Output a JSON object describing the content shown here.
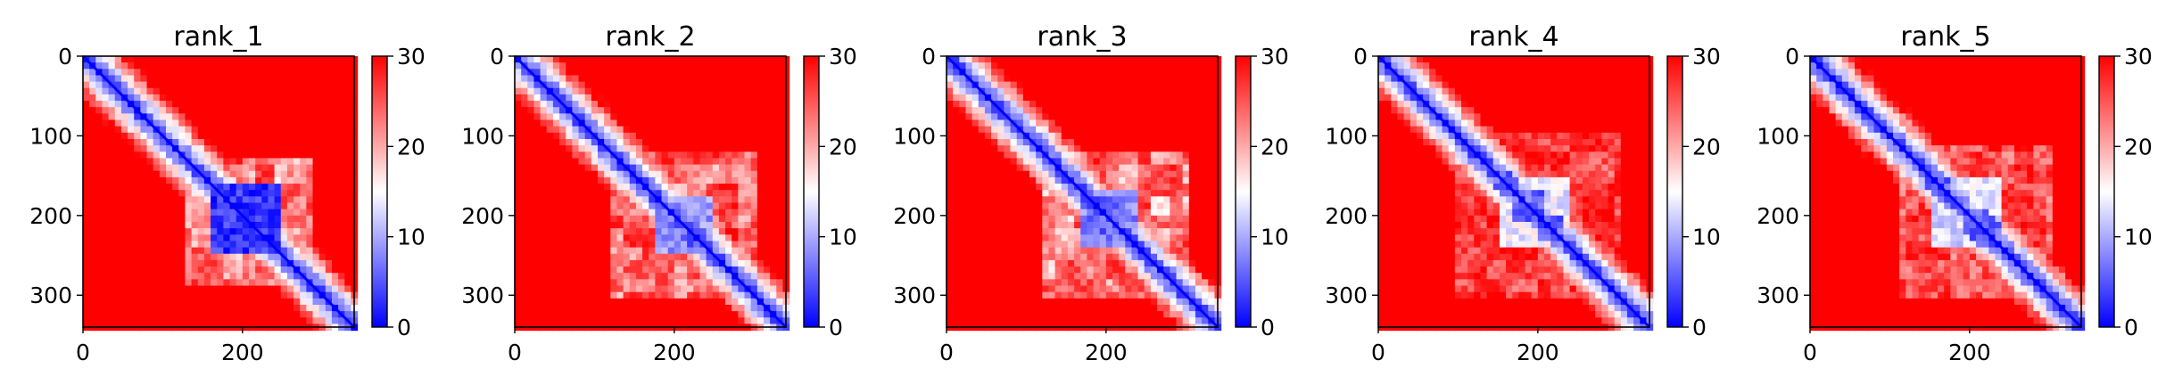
{
  "chart_data": [
    {
      "type": "heatmap",
      "title": "rank_1",
      "xlim": [
        0,
        340
      ],
      "ylim": [
        340,
        0
      ],
      "x_ticks": [
        0,
        200
      ],
      "y_ticks": [
        0,
        100,
        200,
        300
      ],
      "colorbar": {
        "min": 0,
        "max": 30,
        "ticks": [
          0,
          10,
          20,
          30
        ],
        "cmap": [
          "#0000ff",
          "#ffffff",
          "#ff0000"
        ]
      },
      "features": {
        "block": [
          130,
          290
        ],
        "core": [
          160,
          250
        ],
        "fringe": 0.55,
        "core_strength": 0.85,
        "blobs": []
      }
    },
    {
      "type": "heatmap",
      "title": "rank_2",
      "xlim": [
        0,
        340
      ],
      "ylim": [
        340,
        0
      ],
      "x_ticks": [
        0,
        200
      ],
      "y_ticks": [
        0,
        100,
        200,
        300
      ],
      "colorbar": {
        "min": 0,
        "max": 30,
        "ticks": [
          0,
          10,
          20,
          30
        ],
        "cmap": [
          "#0000ff",
          "#ffffff",
          "#ff0000"
        ]
      },
      "features": {
        "block": [
          120,
          300
        ],
        "core": [
          180,
          250
        ],
        "fringe": 0.5,
        "core_strength": 0.55,
        "blobs": [
          [
            205,
            205
          ],
          [
            230,
            225
          ]
        ]
      }
    },
    {
      "type": "heatmap",
      "title": "rank_3",
      "xlim": [
        0,
        340
      ],
      "ylim": [
        340,
        0
      ],
      "x_ticks": [
        0,
        200
      ],
      "y_ticks": [
        0,
        100,
        200,
        300
      ],
      "colorbar": {
        "min": 0,
        "max": 30,
        "ticks": [
          0,
          10,
          20,
          30
        ],
        "cmap": [
          "#0000ff",
          "#ffffff",
          "#ff0000"
        ]
      },
      "features": {
        "block": [
          120,
          300
        ],
        "core": [
          170,
          240
        ],
        "fringe": 0.55,
        "core_strength": 0.6,
        "blobs": [
          [
            210,
            205
          ],
          [
            190,
            200
          ]
        ]
      }
    },
    {
      "type": "heatmap",
      "title": "rank_4",
      "xlim": [
        0,
        340
      ],
      "ylim": [
        340,
        0
      ],
      "x_ticks": [
        0,
        200
      ],
      "y_ticks": [
        0,
        100,
        200,
        300
      ],
      "colorbar": {
        "min": 0,
        "max": 30,
        "ticks": [
          0,
          10,
          20,
          30
        ],
        "cmap": [
          "#0000ff",
          "#ffffff",
          "#ff0000"
        ]
      },
      "features": {
        "block": [
          100,
          300
        ],
        "core": [
          150,
          240
        ],
        "fringe": 0.4,
        "core_strength": 0.3,
        "blobs": [
          [
            160,
            160
          ],
          [
            195,
            180
          ],
          [
            220,
            215
          ]
        ]
      }
    },
    {
      "type": "heatmap",
      "title": "rank_5",
      "xlim": [
        0,
        340
      ],
      "ylim": [
        340,
        0
      ],
      "x_ticks": [
        0,
        200
      ],
      "y_ticks": [
        0,
        100,
        200,
        300
      ],
      "colorbar": {
        "min": 0,
        "max": 30,
        "ticks": [
          0,
          10,
          20,
          30
        ],
        "cmap": [
          "#0000ff",
          "#ffffff",
          "#ff0000"
        ]
      },
      "features": {
        "block": [
          110,
          300
        ],
        "core": [
          150,
          240
        ],
        "fringe": 0.45,
        "core_strength": 0.35,
        "blobs": [
          [
            160,
            160
          ],
          [
            215,
            205
          ],
          [
            225,
            215
          ]
        ]
      }
    }
  ]
}
